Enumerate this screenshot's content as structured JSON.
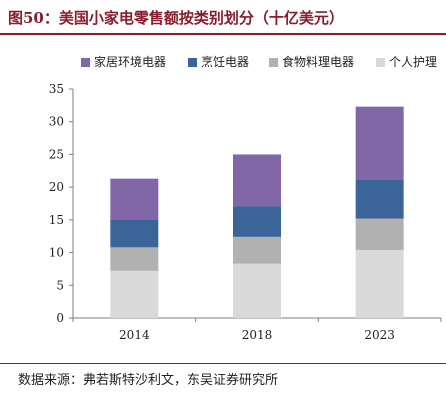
{
  "figure": {
    "title": "图50：美国小家电零售额按类别划分（十亿美元）",
    "source": "数据来源：弗若斯特沙利文，东吴证券研究所"
  },
  "chart_data": {
    "type": "bar",
    "stacked": true,
    "categories": [
      "2014",
      "2018",
      "2023"
    ],
    "series": [
      {
        "name": "个人护理",
        "values": [
          7.2,
          8.3,
          10.4
        ],
        "color": "#d9d9d9"
      },
      {
        "name": "食物料理电器",
        "values": [
          3.6,
          4.1,
          4.8
        ],
        "color": "#b1b1b1"
      },
      {
        "name": "烹饪电器",
        "values": [
          4.3,
          4.7,
          6.0
        ],
        "color": "#3b6499"
      },
      {
        "name": "家居环境电器",
        "values": [
          6.2,
          7.9,
          11.1
        ],
        "color": "#8166a8"
      }
    ],
    "legend_order": [
      "家居环境电器",
      "烹饪电器",
      "食物料理电器",
      "个人护理"
    ],
    "ylim": [
      0,
      35
    ],
    "yticks": [
      0,
      5,
      10,
      15,
      20,
      25,
      30,
      35
    ],
    "grid": false,
    "legend_position": "top",
    "xlabel": "",
    "ylabel": "",
    "title": ""
  }
}
